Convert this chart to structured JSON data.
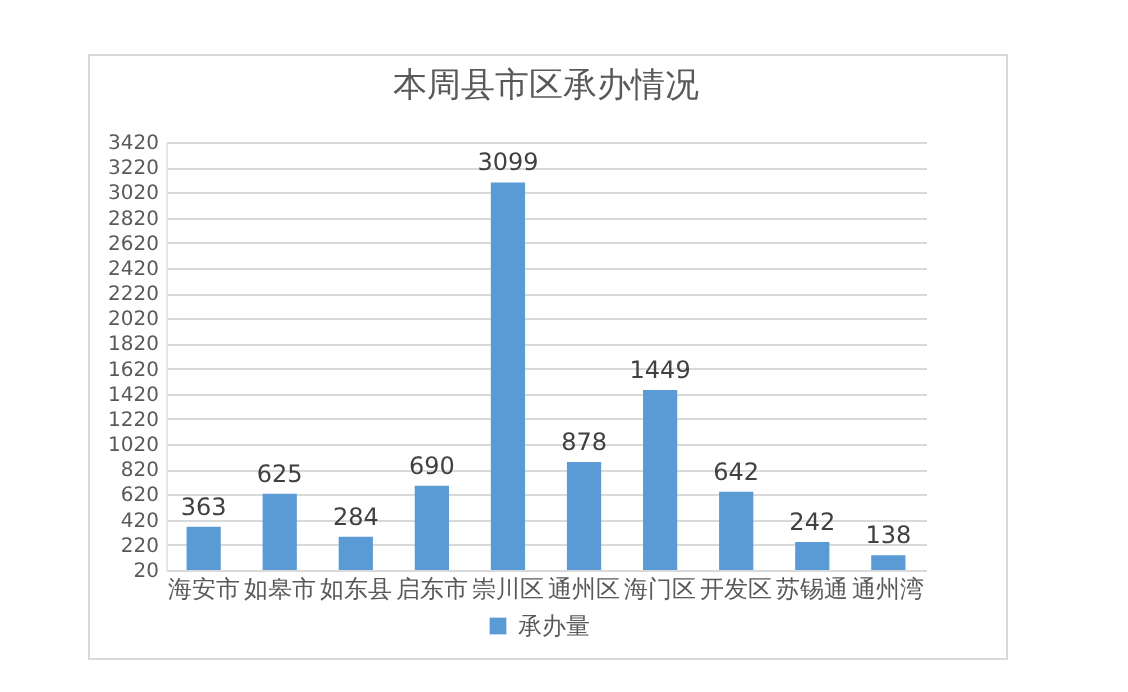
{
  "chart_data": {
    "type": "bar",
    "title": "本周县市区承办情况",
    "categories": [
      "海安市",
      "如皋市",
      "如东县",
      "启东市",
      "崇川区",
      "通州区",
      "海门区",
      "开发区",
      "苏锡通",
      "通州湾"
    ],
    "series": [
      {
        "name": "承办量",
        "color": "#5b9bd5",
        "values": [
          363,
          625,
          284,
          690,
          3099,
          878,
          1449,
          642,
          242,
          138
        ]
      }
    ],
    "ylim": [
      20,
      3420
    ],
    "yticks": [
      20,
      220,
      420,
      620,
      820,
      1020,
      1220,
      1420,
      1620,
      1820,
      2020,
      2220,
      2420,
      2620,
      2820,
      3020,
      3220,
      3420
    ],
    "grid": "y",
    "legend": "bottom",
    "data_labels": true
  }
}
